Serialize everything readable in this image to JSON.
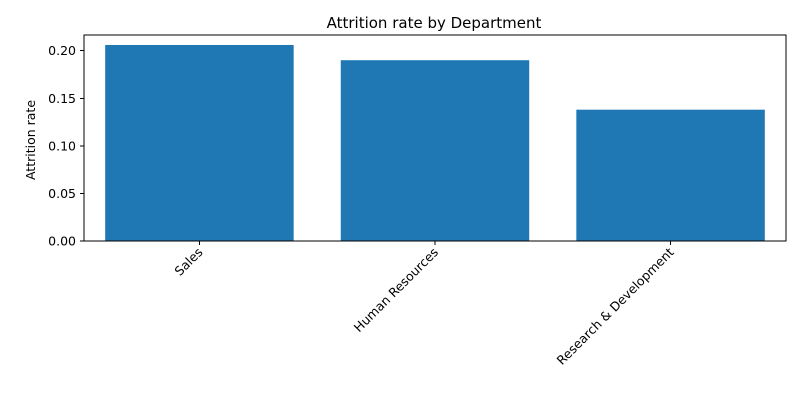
{
  "chart_data": {
    "type": "bar",
    "title": "Attrition rate by Department",
    "xlabel": "",
    "ylabel": "Attrition rate",
    "categories": [
      "Sales",
      "Human Resources",
      "Research & Development"
    ],
    "values": [
      0.206,
      0.19,
      0.138
    ],
    "ylim": [
      0,
      0.2165
    ],
    "yticks": [
      "0.00",
      "0.05",
      "0.10",
      "0.15",
      "0.20"
    ],
    "bar_color": "#1f77b4",
    "grid": false,
    "legend": "none"
  }
}
